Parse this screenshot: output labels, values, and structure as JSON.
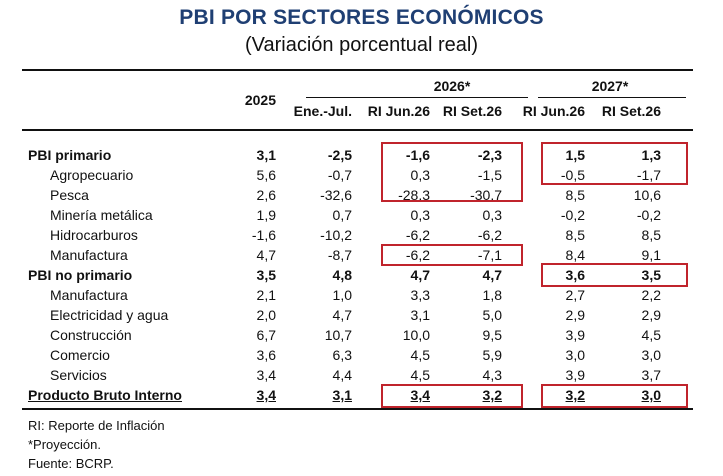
{
  "title": "PBI POR SECTORES ECONÓMICOS",
  "subtitle": "(Variación porcentual real)",
  "header": {
    "group_2026": "2026*",
    "group_2027": "2027*",
    "columns": [
      "2025",
      "Ene.-Jul.",
      "RI Jun.26",
      "RI Set.26",
      "RI Jun.26",
      "RI Set.26"
    ]
  },
  "rows": [
    {
      "label": "PBI primario",
      "bold": true,
      "indent": false,
      "values": [
        "3,1",
        "-2,5",
        "-1,6",
        "-2,3",
        "1,5",
        "1,3"
      ]
    },
    {
      "label": "Agropecuario",
      "bold": false,
      "indent": true,
      "values": [
        "5,6",
        "-0,7",
        "0,3",
        "-1,5",
        "-0,5",
        "-1,7"
      ]
    },
    {
      "label": "Pesca",
      "bold": false,
      "indent": true,
      "values": [
        "2,6",
        "-32,6",
        "-28,3",
        "-30,7",
        "8,5",
        "10,6"
      ]
    },
    {
      "label": "Minería metálica",
      "bold": false,
      "indent": true,
      "values": [
        "1,9",
        "0,7",
        "0,3",
        "0,3",
        "-0,2",
        "-0,2"
      ]
    },
    {
      "label": "Hidrocarburos",
      "bold": false,
      "indent": true,
      "values": [
        "-1,6",
        "-10,2",
        "-6,2",
        "-6,2",
        "8,5",
        "8,5"
      ]
    },
    {
      "label": "Manufactura",
      "bold": false,
      "indent": true,
      "values": [
        "4,7",
        "-8,7",
        "-6,2",
        "-7,1",
        "8,4",
        "9,1"
      ]
    },
    {
      "label": "PBI no primario",
      "bold": true,
      "indent": false,
      "values": [
        "3,5",
        "4,8",
        "4,7",
        "4,7",
        "3,6",
        "3,5"
      ]
    },
    {
      "label": "Manufactura",
      "bold": false,
      "indent": true,
      "values": [
        "2,1",
        "1,0",
        "3,3",
        "1,8",
        "2,7",
        "2,2"
      ]
    },
    {
      "label": "Electricidad y agua",
      "bold": false,
      "indent": true,
      "values": [
        "2,0",
        "4,7",
        "3,1",
        "5,0",
        "2,9",
        "2,9"
      ]
    },
    {
      "label": "Construcción",
      "bold": false,
      "indent": true,
      "values": [
        "6,7",
        "10,7",
        "10,0",
        "9,5",
        "3,9",
        "4,5"
      ]
    },
    {
      "label": "Comercio",
      "bold": false,
      "indent": true,
      "values": [
        "3,6",
        "6,3",
        "4,5",
        "5,9",
        "3,0",
        "3,0"
      ]
    },
    {
      "label": "Servicios",
      "bold": false,
      "indent": true,
      "values": [
        "3,4",
        "4,4",
        "4,5",
        "4,3",
        "3,9",
        "3,7"
      ]
    },
    {
      "label": "Producto Bruto Interno",
      "bold": true,
      "indent": false,
      "underline": true,
      "values": [
        "3,4",
        "3,1",
        "3,4",
        "3,2",
        "3,2",
        "3,0"
      ]
    }
  ],
  "notes": [
    "RI: Reporte de Inflación",
    "*Proyección.",
    "Fuente: BCRP."
  ],
  "colors": {
    "title": "#1f3f73",
    "highlight_box": "#c0242c"
  }
}
